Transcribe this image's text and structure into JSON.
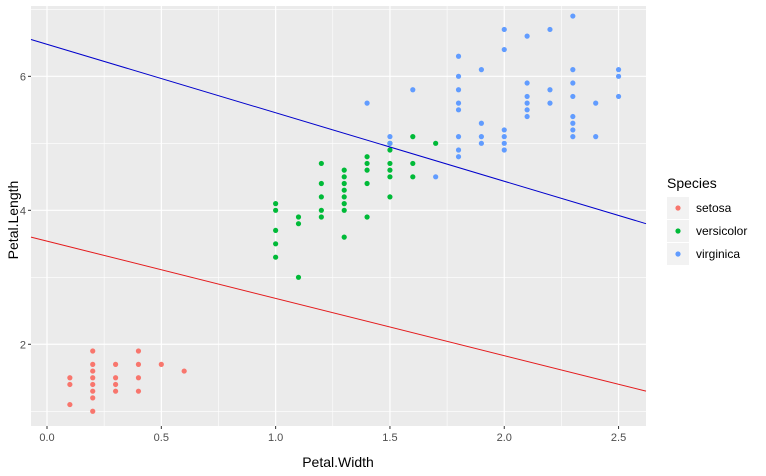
{
  "chart_data": {
    "type": "scatter",
    "xlabel": "Petal.Width",
    "ylabel": "Petal.Length",
    "xlim": [
      -0.07,
      2.62
    ],
    "ylim": [
      0.78,
      7.05
    ],
    "x_ticks": [
      0.0,
      0.5,
      1.0,
      1.5,
      2.0,
      2.5
    ],
    "x_tick_labels": [
      "0.0",
      "0.5",
      "1.0",
      "1.5",
      "2.0",
      "2.5"
    ],
    "y_ticks": [
      2,
      4,
      6
    ],
    "y_tick_labels": [
      "2",
      "4",
      "6"
    ],
    "grid": true,
    "legend": {
      "title": "Species",
      "position": "right",
      "items": [
        "setosa",
        "versicolor",
        "virginica"
      ]
    },
    "colors": {
      "setosa": "#F8766D",
      "versicolor": "#00BA38",
      "virginica": "#619CFF",
      "line_upper": "#0000CC",
      "line_lower": "#E41A1C",
      "panel": "#EBEBEB",
      "grid": "#FFFFFF"
    },
    "lines": [
      {
        "name": "upper",
        "x": [
          -0.07,
          2.62
        ],
        "y": [
          6.55,
          3.8
        ]
      },
      {
        "name": "lower",
        "x": [
          -0.07,
          2.62
        ],
        "y": [
          3.6,
          1.3
        ]
      }
    ],
    "series": [
      {
        "name": "setosa",
        "points": [
          [
            0.1,
            1.5
          ],
          [
            0.1,
            1.4
          ],
          [
            0.1,
            1.1
          ],
          [
            0.2,
            1.9
          ],
          [
            0.2,
            1.7
          ],
          [
            0.2,
            1.6
          ],
          [
            0.2,
            1.5
          ],
          [
            0.2,
            1.4
          ],
          [
            0.2,
            1.3
          ],
          [
            0.2,
            1.2
          ],
          [
            0.2,
            1.0
          ],
          [
            0.3,
            1.7
          ],
          [
            0.3,
            1.5
          ],
          [
            0.3,
            1.4
          ],
          [
            0.3,
            1.3
          ],
          [
            0.4,
            1.9
          ],
          [
            0.4,
            1.7
          ],
          [
            0.4,
            1.5
          ],
          [
            0.4,
            1.3
          ],
          [
            0.5,
            1.7
          ],
          [
            0.6,
            1.6
          ]
        ]
      },
      {
        "name": "versicolor",
        "points": [
          [
            1.0,
            4.1
          ],
          [
            1.0,
            4.0
          ],
          [
            1.0,
            3.7
          ],
          [
            1.0,
            3.5
          ],
          [
            1.0,
            3.3
          ],
          [
            1.1,
            3.9
          ],
          [
            1.1,
            3.8
          ],
          [
            1.1,
            3.0
          ],
          [
            1.2,
            4.7
          ],
          [
            1.2,
            4.4
          ],
          [
            1.2,
            4.2
          ],
          [
            1.2,
            4.0
          ],
          [
            1.2,
            3.9
          ],
          [
            1.3,
            4.6
          ],
          [
            1.3,
            4.5
          ],
          [
            1.3,
            4.4
          ],
          [
            1.3,
            4.3
          ],
          [
            1.3,
            4.2
          ],
          [
            1.3,
            4.1
          ],
          [
            1.3,
            4.0
          ],
          [
            1.3,
            3.6
          ],
          [
            1.4,
            4.8
          ],
          [
            1.4,
            4.7
          ],
          [
            1.4,
            4.6
          ],
          [
            1.4,
            4.4
          ],
          [
            1.4,
            3.9
          ],
          [
            1.5,
            5.0
          ],
          [
            1.5,
            4.9
          ],
          [
            1.5,
            4.7
          ],
          [
            1.5,
            4.6
          ],
          [
            1.5,
            4.5
          ],
          [
            1.5,
            4.2
          ],
          [
            1.6,
            5.1
          ],
          [
            1.6,
            4.7
          ],
          [
            1.6,
            4.5
          ],
          [
            1.7,
            5.0
          ]
        ]
      },
      {
        "name": "virginica",
        "points": [
          [
            1.4,
            5.6
          ],
          [
            1.5,
            5.1
          ],
          [
            1.5,
            5.0
          ],
          [
            1.6,
            5.8
          ],
          [
            1.7,
            4.5
          ],
          [
            1.8,
            6.3
          ],
          [
            1.8,
            6.0
          ],
          [
            1.8,
            5.8
          ],
          [
            1.8,
            5.6
          ],
          [
            1.8,
            5.5
          ],
          [
            1.8,
            5.1
          ],
          [
            1.8,
            4.9
          ],
          [
            1.8,
            4.8
          ],
          [
            1.9,
            6.1
          ],
          [
            1.9,
            5.3
          ],
          [
            1.9,
            5.1
          ],
          [
            1.9,
            5.0
          ],
          [
            2.0,
            6.7
          ],
          [
            2.0,
            6.4
          ],
          [
            2.0,
            5.2
          ],
          [
            2.0,
            5.1
          ],
          [
            2.0,
            5.0
          ],
          [
            2.0,
            4.9
          ],
          [
            2.1,
            6.6
          ],
          [
            2.1,
            5.9
          ],
          [
            2.1,
            5.7
          ],
          [
            2.1,
            5.6
          ],
          [
            2.1,
            5.5
          ],
          [
            2.1,
            5.4
          ],
          [
            2.2,
            6.7
          ],
          [
            2.2,
            5.8
          ],
          [
            2.2,
            5.6
          ],
          [
            2.3,
            6.9
          ],
          [
            2.3,
            6.1
          ],
          [
            2.3,
            5.9
          ],
          [
            2.3,
            5.7
          ],
          [
            2.3,
            5.4
          ],
          [
            2.3,
            5.3
          ],
          [
            2.3,
            5.2
          ],
          [
            2.3,
            5.1
          ],
          [
            2.4,
            5.6
          ],
          [
            2.4,
            5.1
          ],
          [
            2.5,
            6.1
          ],
          [
            2.5,
            6.0
          ],
          [
            2.5,
            5.7
          ]
        ]
      }
    ]
  }
}
